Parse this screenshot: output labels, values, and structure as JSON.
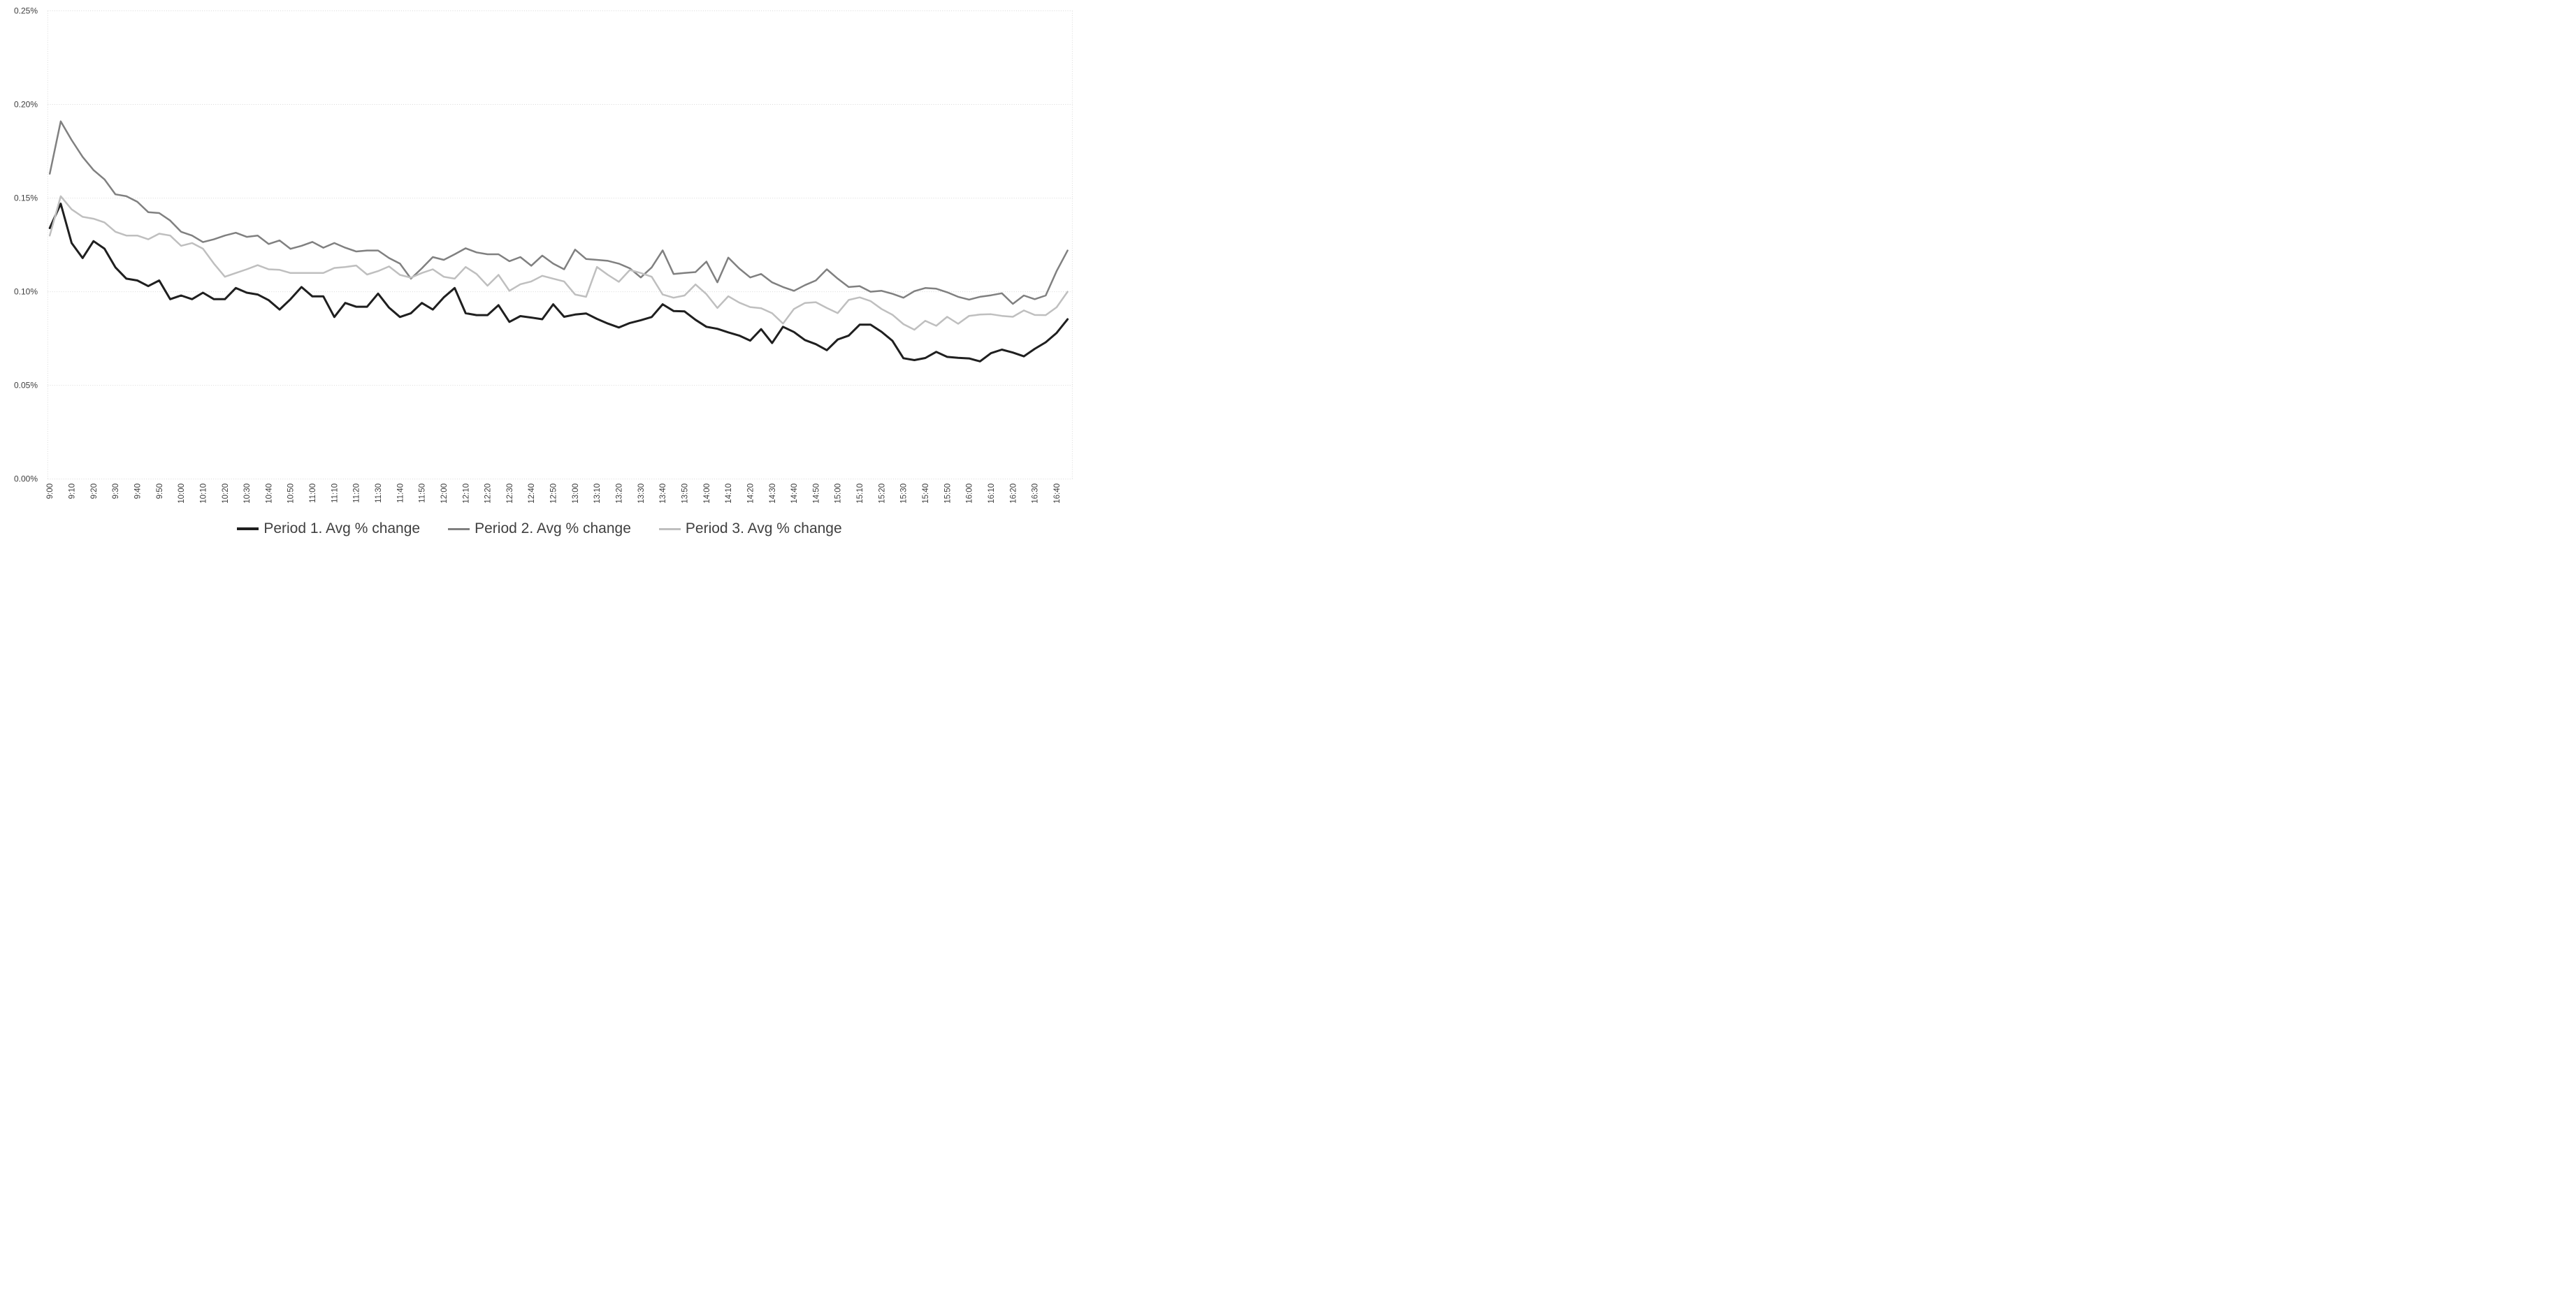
{
  "chart_data": {
    "type": "line",
    "title": "",
    "xlabel": "",
    "ylabel": "",
    "ylim": [
      0,
      0.25
    ],
    "y_tick_values": [
      0,
      0.05,
      0.1,
      0.15,
      0.2,
      0.25
    ],
    "y_tick_labels": [
      "0.00%",
      "0.05%",
      "0.10%",
      "0.15%",
      "0.20%",
      "0.25%"
    ],
    "grid": true,
    "gridline_color": "#d9d9d9",
    "axis_text_color": "#404040",
    "legend_position": "bottom",
    "x_tick_labels": [
      "9:00",
      "9:10",
      "9:20",
      "9:30",
      "9:40",
      "9:50",
      "10:00",
      "10:10",
      "10:20",
      "10:30",
      "10:40",
      "10:50",
      "11:00",
      "11:10",
      "11:20",
      "11:30",
      "11:40",
      "11:50",
      "12:00",
      "12:10",
      "12:20",
      "12:30",
      "12:40",
      "12:50",
      "13:00",
      "13:10",
      "13:20",
      "13:30",
      "13:40",
      "13:50",
      "14:00",
      "14:10",
      "14:20",
      "14:30",
      "14:40",
      "14:50",
      "15:00",
      "15:10",
      "15:20",
      "15:30",
      "15:40",
      "15:50",
      "16:00",
      "16:10",
      "16:20",
      "16:30",
      "16:40"
    ],
    "x": [
      "9:00",
      "9:05",
      "9:10",
      "9:15",
      "9:20",
      "9:25",
      "9:30",
      "9:35",
      "9:40",
      "9:45",
      "9:50",
      "9:55",
      "10:00",
      "10:05",
      "10:10",
      "10:15",
      "10:20",
      "10:25",
      "10:30",
      "10:35",
      "10:40",
      "10:45",
      "10:50",
      "10:55",
      "11:00",
      "11:05",
      "11:10",
      "11:15",
      "11:20",
      "11:25",
      "11:30",
      "11:35",
      "11:40",
      "11:45",
      "11:50",
      "11:55",
      "12:00",
      "12:05",
      "12:10",
      "12:15",
      "12:20",
      "12:25",
      "12:30",
      "12:35",
      "12:40",
      "12:45",
      "12:50",
      "12:55",
      "13:00",
      "13:05",
      "13:10",
      "13:15",
      "13:20",
      "13:25",
      "13:30",
      "13:35",
      "13:40",
      "13:45",
      "13:50",
      "13:55",
      "14:00",
      "14:05",
      "14:10",
      "14:15",
      "14:20",
      "14:25",
      "14:30",
      "14:35",
      "14:40",
      "14:45",
      "14:50",
      "14:55",
      "15:00",
      "15:05",
      "15:10",
      "15:15",
      "15:20",
      "15:25",
      "15:30",
      "15:35",
      "15:40",
      "15:45",
      "15:50",
      "15:55",
      "16:00",
      "16:05",
      "16:10",
      "16:15",
      "16:20",
      "16:25",
      "16:30",
      "16:35",
      "16:40",
      "16:45"
    ],
    "values_unit": "percent",
    "series": [
      {
        "name": "Period 1. Avg % change",
        "color": "#1f1f1f",
        "stroke_width": 3,
        "values": [
          0.134,
          0.147,
          0.126,
          0.118,
          0.127,
          0.123,
          0.113,
          0.107,
          0.106,
          0.103,
          0.106,
          0.096,
          0.098,
          0.096,
          0.0995,
          0.096,
          0.096,
          0.102,
          0.0995,
          0.0985,
          0.0955,
          0.0905,
          0.096,
          0.1025,
          0.0975,
          0.0975,
          0.0865,
          0.094,
          0.092,
          0.092,
          0.099,
          0.0915,
          0.0865,
          0.0885,
          0.094,
          0.0905,
          0.097,
          0.102,
          0.0885,
          0.0875,
          0.0875,
          0.0928,
          0.0839,
          0.087,
          0.0862,
          0.0853,
          0.0933,
          0.0866,
          0.0878,
          0.0884,
          0.0855,
          0.083,
          0.0809,
          0.0833,
          0.0848,
          0.0865,
          0.0933,
          0.0897,
          0.0895,
          0.085,
          0.0813,
          0.0802,
          0.0783,
          0.0766,
          0.0739,
          0.08,
          0.0726,
          0.0813,
          0.0785,
          0.0742,
          0.072,
          0.0688,
          0.0745,
          0.0766,
          0.0824,
          0.0824,
          0.0786,
          0.0738,
          0.0645,
          0.0635,
          0.0646,
          0.0679,
          0.0652,
          0.0647,
          0.0644,
          0.0628,
          0.0672,
          0.0691,
          0.0675,
          0.0655,
          0.0695,
          0.073,
          0.078,
          0.0853
        ]
      },
      {
        "name": "Period 2. Avg % change",
        "color": "#808080",
        "stroke_width": 2.5,
        "values": [
          0.163,
          0.191,
          0.181,
          0.172,
          0.165,
          0.16,
          0.152,
          0.151,
          0.148,
          0.1425,
          0.142,
          0.138,
          0.132,
          0.13,
          0.1265,
          0.128,
          0.13,
          0.1315,
          0.1293,
          0.13,
          0.1255,
          0.1274,
          0.1229,
          0.1245,
          0.1266,
          0.1235,
          0.126,
          0.1235,
          0.1215,
          0.122,
          0.122,
          0.118,
          0.115,
          0.107,
          0.1125,
          0.1185,
          0.117,
          0.12,
          0.1232,
          0.121,
          0.12,
          0.12,
          0.1163,
          0.1185,
          0.1139,
          0.1193,
          0.115,
          0.112,
          0.1225,
          0.1175,
          0.117,
          0.1165,
          0.115,
          0.1125,
          0.1076,
          0.113,
          0.1221,
          0.1095,
          0.11,
          0.1105,
          0.1161,
          0.105,
          0.1182,
          0.1124,
          0.1076,
          0.1095,
          0.105,
          0.1025,
          0.1005,
          0.1035,
          0.106,
          0.112,
          0.107,
          0.1025,
          0.103,
          0.1,
          0.1005,
          0.0989,
          0.0968,
          0.1003,
          0.102,
          0.1016,
          0.0997,
          0.0973,
          0.0958,
          0.0973,
          0.0981,
          0.0992,
          0.0935,
          0.098,
          0.096,
          0.098,
          0.111,
          0.122
        ]
      },
      {
        "name": "Period 3. Avg % change",
        "color": "#bfbfbf",
        "stroke_width": 2.5,
        "values": [
          0.13,
          0.151,
          0.144,
          0.14,
          0.139,
          0.137,
          0.132,
          0.13,
          0.13,
          0.128,
          0.131,
          0.13,
          0.1245,
          0.126,
          0.123,
          0.115,
          0.108,
          0.11,
          0.112,
          0.1142,
          0.112,
          0.1117,
          0.11,
          0.11,
          0.11,
          0.11,
          0.1127,
          0.1132,
          0.114,
          0.1092,
          0.111,
          0.1135,
          0.109,
          0.1075,
          0.11,
          0.112,
          0.108,
          0.107,
          0.1132,
          0.1095,
          0.1032,
          0.109,
          0.1005,
          0.104,
          0.1055,
          0.1085,
          0.107,
          0.1055,
          0.0985,
          0.0973,
          0.1132,
          0.109,
          0.1053,
          0.1116,
          0.11,
          0.108,
          0.0985,
          0.0968,
          0.098,
          0.1039,
          0.0987,
          0.0913,
          0.0976,
          0.0942,
          0.0918,
          0.0912,
          0.0885,
          0.083,
          0.0908,
          0.094,
          0.0944,
          0.0913,
          0.0886,
          0.0956,
          0.097,
          0.095,
          0.0908,
          0.0877,
          0.0827,
          0.0797,
          0.0845,
          0.0818,
          0.0866,
          0.0829,
          0.0871,
          0.0878,
          0.088,
          0.0871,
          0.0866,
          0.09,
          0.0876,
          0.0875,
          0.0917,
          0.1
        ]
      }
    ]
  },
  "legend": {
    "items": [
      {
        "label": "Period 1. Avg % change",
        "color": "#1f1f1f"
      },
      {
        "label": "Period 2. Avg % change",
        "color": "#808080"
      },
      {
        "label": "Period 3. Avg % change",
        "color": "#bfbfbf"
      }
    ]
  }
}
